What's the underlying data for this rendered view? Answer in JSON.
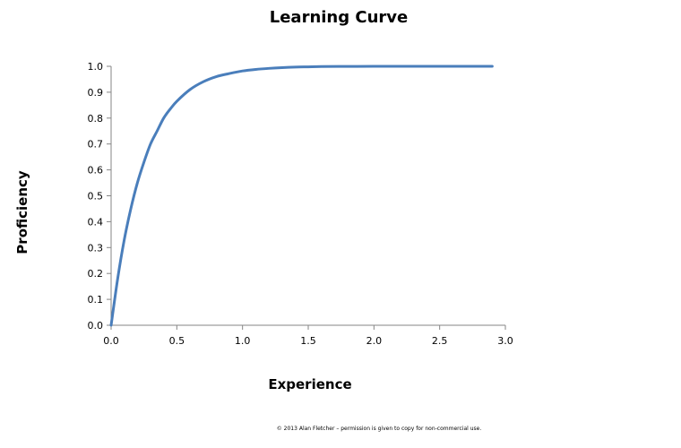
{
  "chart_data": {
    "type": "line",
    "title": "Learning Curve",
    "xlabel": "Experience",
    "ylabel": "Proficiency",
    "xlim": [
      0,
      3
    ],
    "ylim": [
      0,
      1
    ],
    "x_ticks": [
      "0.0",
      "0.5",
      "1.0",
      "1.5",
      "2.0",
      "2.5",
      "3.0"
    ],
    "y_ticks": [
      "0.0",
      "0.1",
      "0.2",
      "0.3",
      "0.4",
      "0.5",
      "0.6",
      "0.7",
      "0.8",
      "0.9",
      "1.0"
    ],
    "grid": false,
    "legend": "none",
    "series": [
      {
        "color": "#4a7ebb",
        "x": [
          0,
          0.05,
          0.1,
          0.15,
          0.2,
          0.25,
          0.3,
          0.35,
          0.4,
          0.45,
          0.5,
          0.6,
          0.7,
          0.8,
          0.9,
          1.0,
          1.1,
          1.2,
          1.3,
          1.4,
          1.5,
          1.6,
          1.8,
          2.0,
          2.2,
          2.4,
          2.6,
          2.8,
          2.9
        ],
        "y": [
          0,
          0.18,
          0.33,
          0.45,
          0.55,
          0.63,
          0.7,
          0.75,
          0.8,
          0.835,
          0.865,
          0.91,
          0.94,
          0.96,
          0.972,
          0.982,
          0.988,
          0.992,
          0.995,
          0.997,
          0.998,
          0.999,
          0.9995,
          1.0,
          1.0,
          1.0,
          1.0,
          1.0,
          1.0
        ]
      }
    ]
  },
  "footer": "© 2013 Alan Fletcher – permission is given to copy for non-commercial use."
}
